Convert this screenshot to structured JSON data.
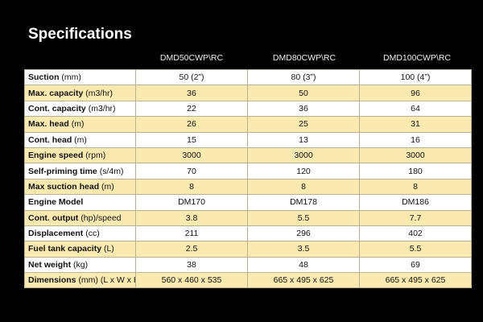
{
  "title": "Specifications",
  "table": {
    "columns": [
      "DMD50CWP\\RC",
      "DMD80CWP\\RC",
      "DMD100CWP\\RC"
    ],
    "rows": [
      {
        "label": "Suction",
        "unit": "(mm)",
        "values": [
          "50 (2”)",
          "80 (3”)",
          "100 (4”)"
        ]
      },
      {
        "label": "Max. capacity",
        "unit": "(m3/hr)",
        "values": [
          "36",
          "50",
          "96"
        ]
      },
      {
        "label": "Cont. capacity",
        "unit": "(m3/hr)",
        "values": [
          "22",
          "36",
          "64"
        ]
      },
      {
        "label": "Max. head",
        "unit": "(m)",
        "values": [
          "26",
          "25",
          "31"
        ]
      },
      {
        "label": "Cont. head",
        "unit": "(m)",
        "values": [
          "15",
          "13",
          "16"
        ]
      },
      {
        "label": "Engine speed",
        "unit": "(rpm)",
        "values": [
          "3000",
          "3000",
          "3000"
        ]
      },
      {
        "label": "Self-priming time",
        "unit": "(s/4m)",
        "values": [
          "70",
          "120",
          "180"
        ]
      },
      {
        "label": "Max suction head",
        "unit": "(m)",
        "values": [
          "8",
          "8",
          "8"
        ]
      },
      {
        "label": "Engine Model",
        "values": [
          "DM170",
          "DM178",
          "DM186"
        ]
      },
      {
        "label": "Cont. output",
        "unit": "(hp)/speed",
        "values": [
          "3.8",
          "5.5",
          "7.7"
        ]
      },
      {
        "label": "Displacement",
        "unit": "(cc)",
        "values": [
          "211",
          "296",
          "402"
        ]
      },
      {
        "label": "Fuel tank capacity",
        "unit": "(L)",
        "values": [
          "2.5",
          "3.5",
          "5.5"
        ]
      },
      {
        "label": "Net weight",
        "unit": "(kg)",
        "values": [
          "38",
          "48",
          "69"
        ]
      },
      {
        "label": "Dimensions",
        "unit": "(mm) (L x W x H)",
        "values": [
          "560 x 460 x 535",
          "665 x 495 x 625",
          "665 x 495 x 625"
        ]
      }
    ]
  }
}
